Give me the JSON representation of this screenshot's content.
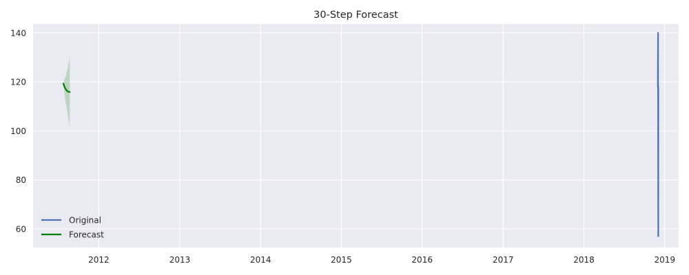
{
  "chart_data": {
    "type": "line",
    "title": "30-Step Forecast",
    "xlabel": "",
    "ylabel": "",
    "x_axis": {
      "type": "date",
      "range": [
        "2011-03-10",
        "2019-03-05"
      ],
      "tick_labels": [
        "2012",
        "2013",
        "2014",
        "2015",
        "2016",
        "2017",
        "2018",
        "2019"
      ]
    },
    "y_axis": {
      "range": [
        52.4,
        143.6
      ],
      "ticks": [
        60,
        80,
        100,
        120,
        140
      ]
    },
    "grid": true,
    "legend": {
      "placement": "lower-left"
    },
    "series": [
      {
        "name": "Original",
        "color": "#4c72b0",
        "points": [
          [
            "2018-12-01",
            118
          ],
          [
            "2018-12-02",
            140
          ],
          [
            "2018-12-02",
            119
          ],
          [
            "2018-12-03",
            57
          ],
          [
            "2018-12-03",
            118
          ]
        ]
      },
      {
        "name": "Forecast",
        "color": "#008000",
        "points": [
          [
            "2011-07-25",
            119.3
          ],
          [
            "2011-07-30",
            118.0
          ],
          [
            "2011-08-04",
            117.1
          ],
          [
            "2011-08-09",
            116.5
          ],
          [
            "2011-08-14",
            116.1
          ],
          [
            "2011-08-19",
            115.9
          ],
          [
            "2011-08-23",
            115.9
          ]
        ],
        "interval": {
          "color": "#008000",
          "opacity": 0.2,
          "lower": [
            [
              "2011-07-25",
              118.7
            ],
            [
              "2011-08-04",
              112.0
            ],
            [
              "2011-08-14",
              106.5
            ],
            [
              "2011-08-23",
              101.6
            ]
          ],
          "upper": [
            [
              "2011-07-25",
              119.9
            ],
            [
              "2011-08-04",
              122.2
            ],
            [
              "2011-08-14",
              125.7
            ],
            [
              "2011-08-23",
              130.2
            ]
          ]
        }
      }
    ]
  }
}
